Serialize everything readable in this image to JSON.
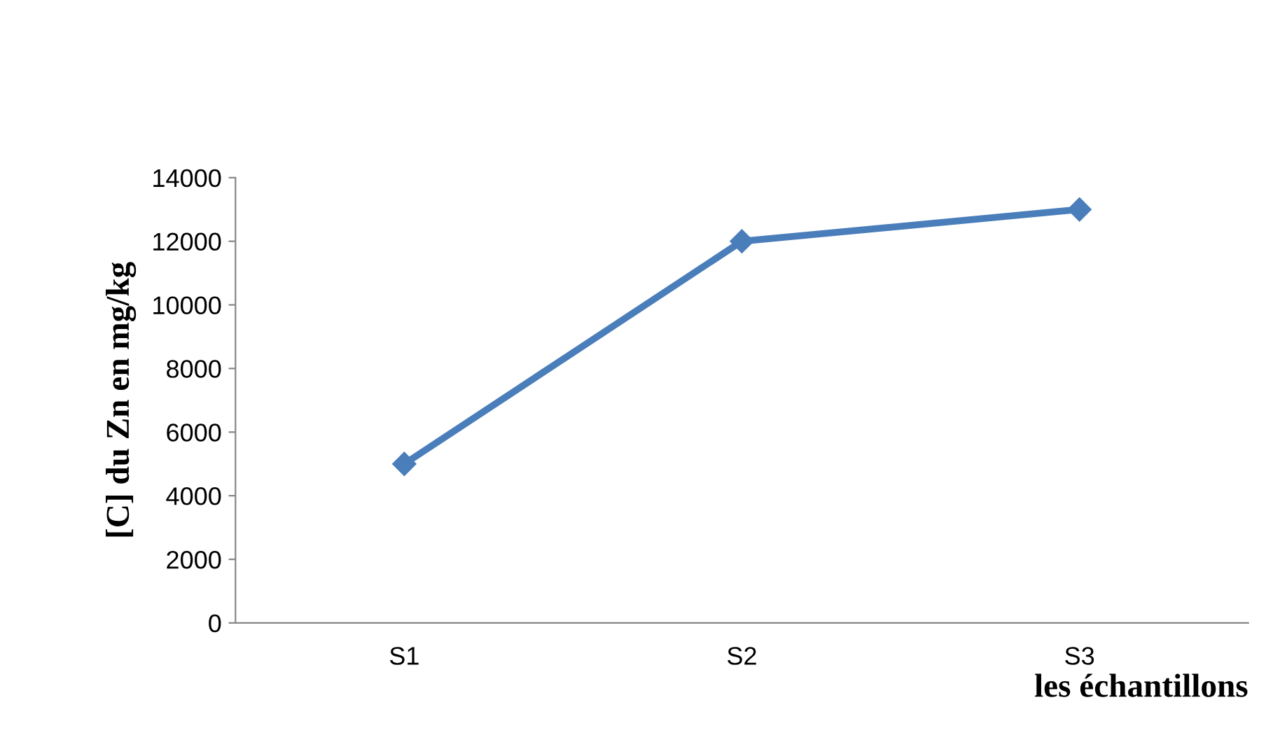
{
  "chart_data": {
    "type": "line",
    "xlabel": "les échantillons",
    "ylabel": "[C] du Zn en mg/kg",
    "categories": [
      "S1",
      "S2",
      "S3"
    ],
    "series": [
      {
        "color": "#4a7ebb",
        "values": [
          5000,
          12000,
          13000
        ]
      }
    ],
    "ylim": [
      0,
      14000
    ],
    "yticks": [
      0,
      2000,
      4000,
      6000,
      8000,
      10000,
      12000,
      14000
    ],
    "marker": "diamond",
    "line_style": "solid",
    "grid": false,
    "legend": false
  }
}
